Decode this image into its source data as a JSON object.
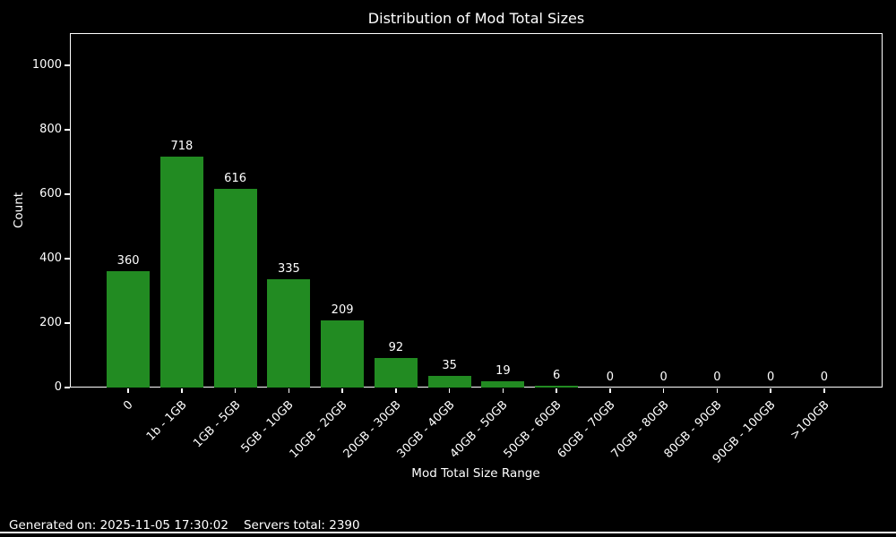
{
  "title": "Distribution of Mod Total Sizes",
  "footer": {
    "generated": "Generated on: 2025-11-05 17:30:02",
    "servers_total": "Servers total: 2390"
  },
  "chart_data": {
    "type": "bar",
    "title": "Distribution of Mod Total Sizes",
    "categories": [
      "0",
      "1b - 1GB",
      "1GB - 5GB",
      "5GB - 10GB",
      "10GB - 20GB",
      "20GB - 30GB",
      "30GB - 40GB",
      "40GB - 50GB",
      "50GB - 60GB",
      "60GB - 70GB",
      "70GB - 80GB",
      "80GB - 90GB",
      "90GB - 100GB",
      ">100GB"
    ],
    "values": [
      360,
      718,
      616,
      335,
      209,
      92,
      35,
      19,
      6,
      0,
      0,
      0,
      0,
      0
    ],
    "xlabel": "Mod Total Size Range",
    "ylabel": "Count",
    "yticks": [
      0,
      200,
      400,
      600,
      800,
      1000
    ],
    "ylim": [
      0,
      1100
    ],
    "bar_labels": true,
    "grid": false,
    "legend": "none",
    "bar_color": "#228B22",
    "background": "#000000",
    "text_color": "#ffffff",
    "axis_color": "#ffffff"
  }
}
